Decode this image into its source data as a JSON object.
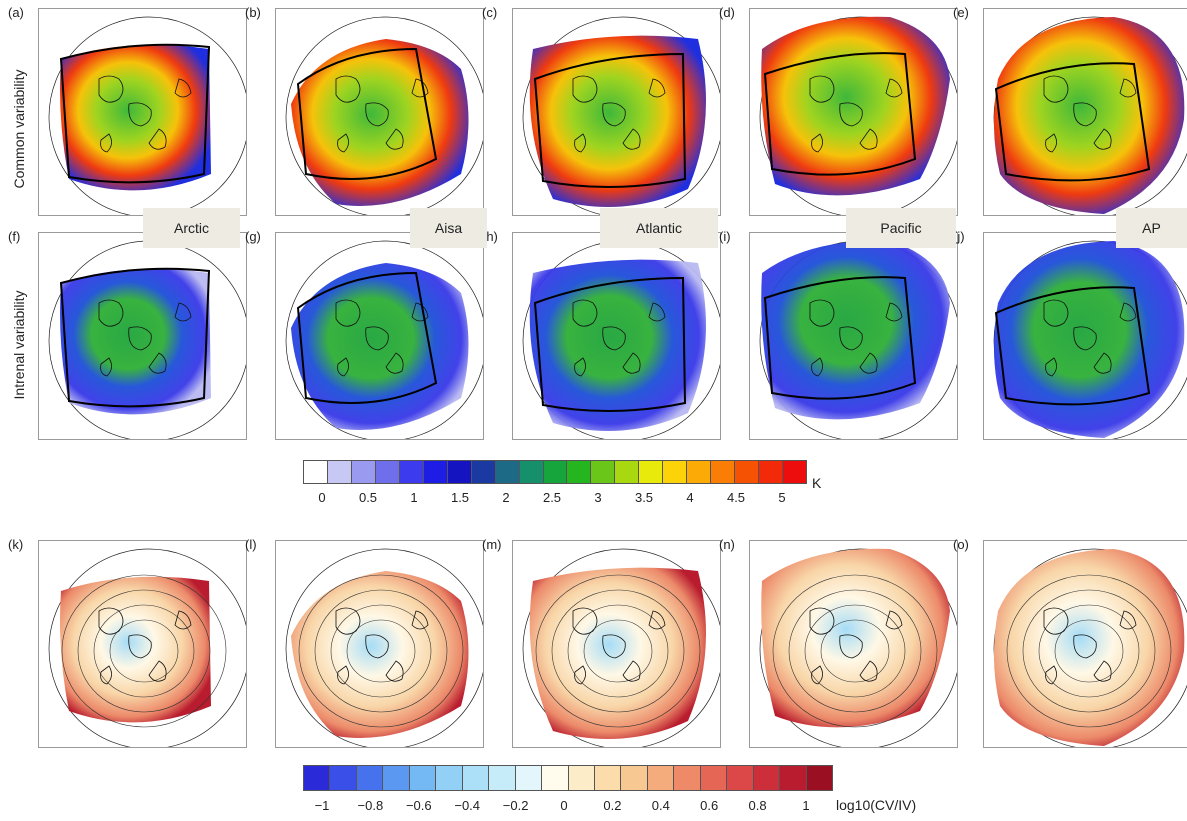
{
  "row_labels": {
    "common": "Common variability",
    "internal": "Intrenal variability"
  },
  "region_tags": [
    "Arctic",
    "Aisa",
    "Atlantic",
    "Pacific",
    "AP"
  ],
  "panels_top": [
    "(a)",
    "(b)",
    "(c)",
    "(d)",
    "(e)"
  ],
  "panels_mid": [
    "(f)",
    "(g)",
    "(h)",
    "(i)",
    "(j)"
  ],
  "panels_bot": [
    "(k)",
    "(l)",
    "(m)",
    "(n)",
    "(o)"
  ],
  "colorbar1": {
    "unit": "K",
    "ticks": [
      "0",
      "0.5",
      "1",
      "1.5",
      "2",
      "2.5",
      "3",
      "3.5",
      "4",
      "4.5",
      "5"
    ],
    "colors": [
      "#ffffff",
      "#c8c8f5",
      "#9a9af0",
      "#6f6fec",
      "#3c3cee",
      "#1d1de6",
      "#1414c0",
      "#1a3aa2",
      "#1d6a86",
      "#15906a",
      "#16a43c",
      "#25b51e",
      "#6bc61a",
      "#a8d810",
      "#e8ea0c",
      "#fcd208",
      "#fbaa06",
      "#fa7e06",
      "#f65204",
      "#f22a0a",
      "#ee0d0d"
    ]
  },
  "colorbar2": {
    "unit": "log10(CV/IV)",
    "ticks": [
      "−1",
      "−0.8",
      "−0.6",
      "−0.4",
      "−0.2",
      "0",
      "0.2",
      "0.4",
      "0.6",
      "0.8",
      "1"
    ],
    "colors": [
      "#2a2ad8",
      "#3a4ee8",
      "#4672ee",
      "#5a98f2",
      "#74b8f4",
      "#92d0f6",
      "#acdff8",
      "#c6ecf9",
      "#e2f6fb",
      "#fffcee",
      "#fdecc8",
      "#fbdcaa",
      "#f8c892",
      "#f4ac7c",
      "#ee8a68",
      "#e66656",
      "#dc4848",
      "#cc2e3a",
      "#b81c2e",
      "#9a0f22"
    ]
  }
}
